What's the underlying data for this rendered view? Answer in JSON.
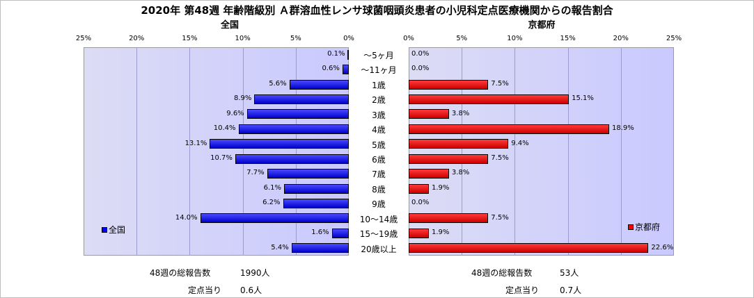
{
  "title": "2020年 第48週 年齢階級別 Ａ群溶血性レンサ球菌咽頭炎患者の小児科定点医療機関からの報告割合",
  "chart_data": {
    "type": "bar",
    "orientation": "horizontal",
    "categories": [
      "～5ヶ月",
      "～11ヶ月",
      "1歳",
      "2歳",
      "3歳",
      "4歳",
      "5歳",
      "6歳",
      "7歳",
      "8歳",
      "9歳",
      "10～14歳",
      "15～19歳",
      "20歳以上"
    ],
    "left": {
      "subtitle": "全国",
      "ticks": [
        "25%",
        "20%",
        "15%",
        "10%",
        "5%",
        "0%"
      ],
      "xlim": [
        0,
        25
      ],
      "series": [
        {
          "name": "全国",
          "color": "#0000ff",
          "values": [
            0.1,
            0.6,
            5.6,
            8.9,
            9.6,
            10.4,
            13.1,
            10.7,
            7.7,
            6.1,
            6.2,
            14.0,
            1.6,
            5.4
          ]
        }
      ],
      "labels": [
        "0.1%",
        "0.6%",
        "5.6%",
        "8.9%",
        "9.6%",
        "10.4%",
        "13.1%",
        "10.7%",
        "7.7%",
        "6.1%",
        "6.2%",
        "14.0%",
        "1.6%",
        "5.4%"
      ],
      "legend_position": "bottom-left"
    },
    "right": {
      "subtitle": "京都府",
      "ticks": [
        "0%",
        "5%",
        "10%",
        "15%",
        "20%",
        "25%"
      ],
      "xlim": [
        0,
        25
      ],
      "series": [
        {
          "name": "京都府",
          "color": "#ff0000",
          "values": [
            0.0,
            0.0,
            7.5,
            15.1,
            3.8,
            18.9,
            9.4,
            7.5,
            3.8,
            1.9,
            0.0,
            7.5,
            1.9,
            22.6
          ]
        }
      ],
      "labels": [
        "0.0%",
        "0.0%",
        "7.5%",
        "15.1%",
        "3.8%",
        "18.9%",
        "9.4%",
        "7.5%",
        "3.8%",
        "1.9%",
        "0.0%",
        "7.5%",
        "1.9%",
        "22.6%"
      ],
      "legend_position": "bottom-right"
    }
  },
  "footer": {
    "left_total_label": "48週の総報告数",
    "left_total_value": "1990人",
    "left_per_label": "定点当り",
    "left_per_value": "0.6人",
    "right_total_label": "48週の総報告数",
    "right_total_value": "53人",
    "right_per_label": "定点当り",
    "right_per_value": "0.7人"
  }
}
